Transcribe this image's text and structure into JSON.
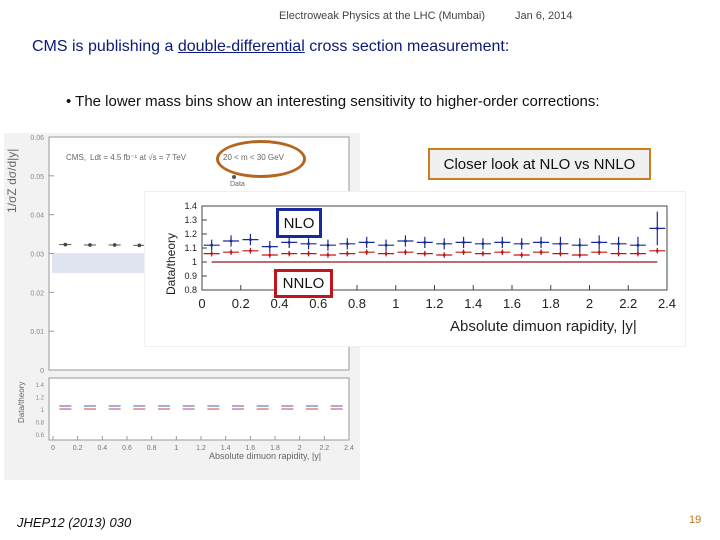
{
  "header": {
    "title": "Electroweak Physics at the LHC (Mumbai)",
    "date": "Jan 6, 2014"
  },
  "slide": {
    "title_before": "CMS is publishing a ",
    "title_underlined": "double-differential",
    "title_after": " cross section measurement:",
    "bullet": "The lower mass bins show an interesting sensitivity to higher-order corrections:",
    "callout": "Closer look at NLO vs NNLO",
    "nlo_label": "NLO",
    "nnlo_label": "NNLO",
    "reference": "JHEP12 (2013) 030",
    "page_number": "19"
  },
  "colors": {
    "title": "#0b1a7a",
    "nlo": "#1b2a9a",
    "nnlo": "#c0161b",
    "callout_border": "#c97f1b",
    "ellipse": "#b5651d"
  },
  "chart_data": [
    {
      "type": "scatter",
      "title": "",
      "legend_entries": [
        "Data"
      ],
      "annotations": [
        "CMS,",
        "Ldt = 4.5 fb⁻¹ at √s = 7 TeV",
        "20 < m < 30 GeV"
      ],
      "ylabel": "1/σZ dσ/d|y|",
      "ratio_ylabel": "Data/theory",
      "xlabel": "Absolute dimuon rapidity, |y|",
      "x_ticks": [
        "0",
        "0.2",
        "0.4",
        "0.6",
        "0.8",
        "1",
        "1.2",
        "1.4",
        "1.6",
        "1.8",
        "2",
        "2.2",
        "2.4"
      ],
      "y_ticks": [
        "0.06",
        "0.05",
        "0.04",
        "0.03",
        "0.02",
        "0.01",
        "0"
      ],
      "ratio_y_ticks": [
        "1.4",
        "1.2",
        "1",
        "0.8",
        "0.6"
      ],
      "ylim": [
        0,
        0.06
      ],
      "xlim": [
        0,
        2.4
      ],
      "series": [
        {
          "values": [
            0.0323,
            0.0322,
            0.0322,
            0.0321,
            0.032,
            0.032,
            0.0319,
            0.0318,
            0.0317,
            0.0316,
            0.0314,
            0.0312
          ]
        }
      ],
      "x": [
        0.1,
        0.3,
        0.5,
        0.7,
        0.9,
        1.1,
        1.3,
        1.5,
        1.7,
        1.9,
        2.1,
        2.3
      ]
    },
    {
      "type": "scatter",
      "title": "",
      "xlabel": "Absolute dimuon rapidity, |y|",
      "ylabel": "Data/theory",
      "x_ticks": [
        "0",
        "0.2",
        "0.4",
        "0.6",
        "0.8",
        "1",
        "1.2",
        "1.4",
        "1.6",
        "1.8",
        "2",
        "2.2",
        "2.4"
      ],
      "y_ticks": [
        "1.4",
        "1.3",
        "1.2",
        "1.1",
        "1",
        "0.9",
        "0.8"
      ],
      "xlim": [
        0,
        2.4
      ],
      "ylim": [
        0.8,
        1.4
      ],
      "x": [
        0.05,
        0.15,
        0.25,
        0.35,
        0.45,
        0.55,
        0.65,
        0.75,
        0.85,
        0.95,
        1.05,
        1.15,
        1.25,
        1.35,
        1.45,
        1.55,
        1.65,
        1.75,
        1.85,
        1.95,
        2.05,
        2.15,
        2.25,
        2.35
      ],
      "series": [
        {
          "name": "NLO",
          "color": "#1b2a9a",
          "values": [
            1.12,
            1.15,
            1.16,
            1.11,
            1.14,
            1.13,
            1.12,
            1.13,
            1.14,
            1.12,
            1.15,
            1.14,
            1.13,
            1.14,
            1.13,
            1.14,
            1.13,
            1.14,
            1.13,
            1.12,
            1.14,
            1.13,
            1.12,
            1.24
          ],
          "errors": [
            0.04,
            0.04,
            0.04,
            0.04,
            0.04,
            0.04,
            0.04,
            0.04,
            0.04,
            0.04,
            0.04,
            0.04,
            0.04,
            0.04,
            0.04,
            0.04,
            0.04,
            0.04,
            0.05,
            0.05,
            0.05,
            0.05,
            0.06,
            0.12
          ]
        },
        {
          "name": "NNLO",
          "color": "#c0161b",
          "values": [
            1.06,
            1.07,
            1.08,
            1.05,
            1.06,
            1.06,
            1.05,
            1.06,
            1.07,
            1.06,
            1.07,
            1.06,
            1.05,
            1.07,
            1.06,
            1.07,
            1.05,
            1.07,
            1.06,
            1.05,
            1.07,
            1.06,
            1.06,
            1.08
          ]
        },
        {
          "name": "",
          "color": "#8b1a1a",
          "values": [
            1.0,
            1.0,
            1.0,
            1.0,
            1.0,
            1.0,
            1.0,
            1.0,
            1.0,
            1.0,
            1.0,
            1.0,
            1.0,
            1.0,
            1.0,
            1.0,
            1.0,
            1.0,
            1.0,
            1.0,
            1.0,
            1.0,
            1.0,
            1.0
          ]
        }
      ]
    }
  ]
}
